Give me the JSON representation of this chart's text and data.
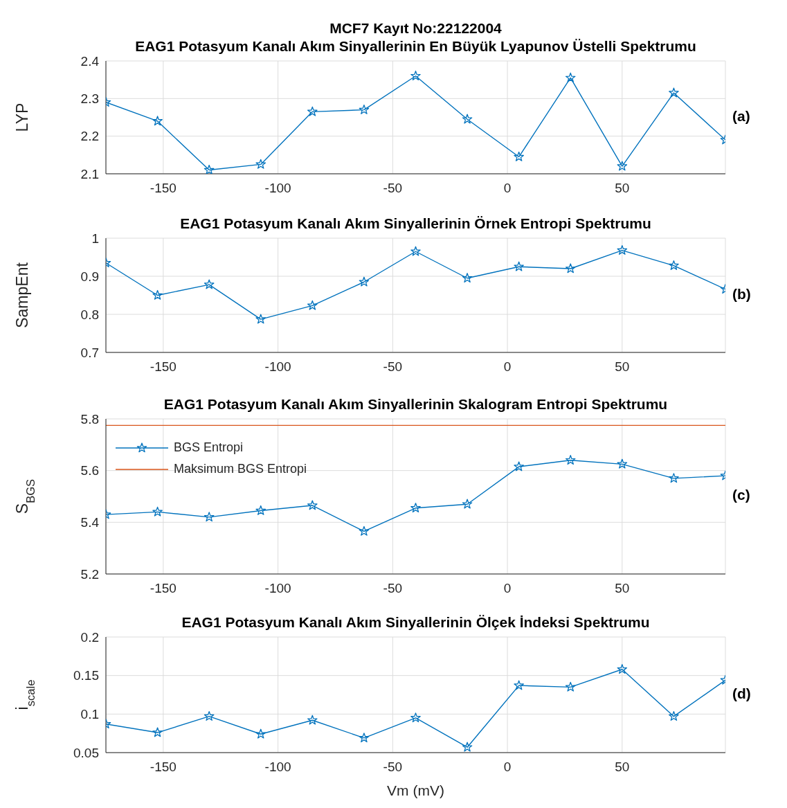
{
  "chart_data": [
    {
      "type": "line",
      "title": "MCF7 Kayıt No:22122004",
      "subtitle": "EAG1 Potasyum Kanalı Akım Sinyallerinin En Büyük Lyapunov Üstelli Spektrumu",
      "ylabel": "LYP",
      "annotations": [
        "(a)"
      ],
      "x": [
        -175,
        -152.5,
        -130,
        -107.5,
        -85,
        -62.5,
        -40,
        -17.5,
        5,
        27.5,
        50,
        72.5,
        95
      ],
      "series": [
        {
          "color": "#0072bd",
          "values": [
            2.29,
            2.24,
            2.11,
            2.125,
            2.265,
            2.27,
            2.36,
            2.245,
            2.145,
            2.355,
            2.12,
            2.315,
            2.19
          ]
        }
      ],
      "xlim": [
        -175,
        95
      ],
      "xticks": [
        -150,
        -100,
        -50,
        0,
        50
      ],
      "ylim": [
        2.1,
        2.4
      ],
      "yticks": [
        2.1,
        2.2,
        2.3,
        2.4
      ],
      "grid": true,
      "marker": "star"
    },
    {
      "type": "line",
      "title": "EAG1 Potasyum Kanalı Akım Sinyallerinin Örnek Entropi Spektrumu",
      "ylabel": "SampEnt",
      "annotations": [
        "(b)"
      ],
      "x": [
        -175,
        -152.5,
        -130,
        -107.5,
        -85,
        -62.5,
        -40,
        -17.5,
        5,
        27.5,
        50,
        72.5,
        95
      ],
      "series": [
        {
          "color": "#0072bd",
          "values": [
            0.935,
            0.85,
            0.878,
            0.787,
            0.823,
            0.885,
            0.965,
            0.895,
            0.925,
            0.92,
            0.968,
            0.928,
            0.866
          ]
        }
      ],
      "xlim": [
        -175,
        95
      ],
      "xticks": [
        -150,
        -100,
        -50,
        0,
        50
      ],
      "ylim": [
        0.7,
        1
      ],
      "yticks": [
        0.7,
        0.8,
        0.9,
        1
      ],
      "grid": true,
      "marker": "star"
    },
    {
      "type": "line",
      "title": "EAG1 Potasyum Kanalı Akım Sinyallerinin Skalogram Entropi Spektrumu",
      "ylabel": "S$_{BGS}$",
      "annotations": [
        "(c)"
      ],
      "x": [
        -175,
        -152.5,
        -130,
        -107.5,
        -85,
        -62.5,
        -40,
        -17.5,
        5,
        27.5,
        50,
        72.5,
        95
      ],
      "series": [
        {
          "name": "BGS Entropi",
          "color": "#0072bd",
          "values": [
            5.43,
            5.44,
            5.42,
            5.445,
            5.465,
            5.365,
            5.455,
            5.47,
            5.615,
            5.64,
            5.625,
            5.57,
            5.58
          ]
        },
        {
          "name": "Maksimum BGS Entropi",
          "color": "#d95319",
          "x": [
            -175,
            95
          ],
          "values": [
            5.775,
            5.775
          ],
          "marker": "none"
        }
      ],
      "xlim": [
        -175,
        95
      ],
      "xticks": [
        -150,
        -100,
        -50,
        0,
        50
      ],
      "ylim": [
        5.2,
        5.8
      ],
      "yticks": [
        5.2,
        5.4,
        5.6,
        5.8
      ],
      "grid": true,
      "marker": "star",
      "legend": "top left"
    },
    {
      "type": "line",
      "title": "EAG1 Potasyum Kanalı Akım Sinyallerinin Ölçek İndeksi Spektrumu",
      "xlabel": "Vm (mV)",
      "ylabel": "i$_{scale}$",
      "annotations": [
        "(d)"
      ],
      "x": [
        -175,
        -152.5,
        -130,
        -107.5,
        -85,
        -62.5,
        -40,
        -17.5,
        5,
        27.5,
        50,
        72.5,
        95
      ],
      "series": [
        {
          "color": "#0072bd",
          "values": [
            0.087,
            0.076,
            0.097,
            0.074,
            0.092,
            0.069,
            0.095,
            0.057,
            0.137,
            0.135,
            0.158,
            0.097,
            0.144
          ]
        }
      ],
      "xlim": [
        -175,
        95
      ],
      "xticks": [
        -150,
        -100,
        -50,
        0,
        50
      ],
      "ylim": [
        0.05,
        0.2
      ],
      "yticks": [
        0.05,
        0.1,
        0.15,
        0.2
      ],
      "grid": true,
      "marker": "star"
    }
  ]
}
